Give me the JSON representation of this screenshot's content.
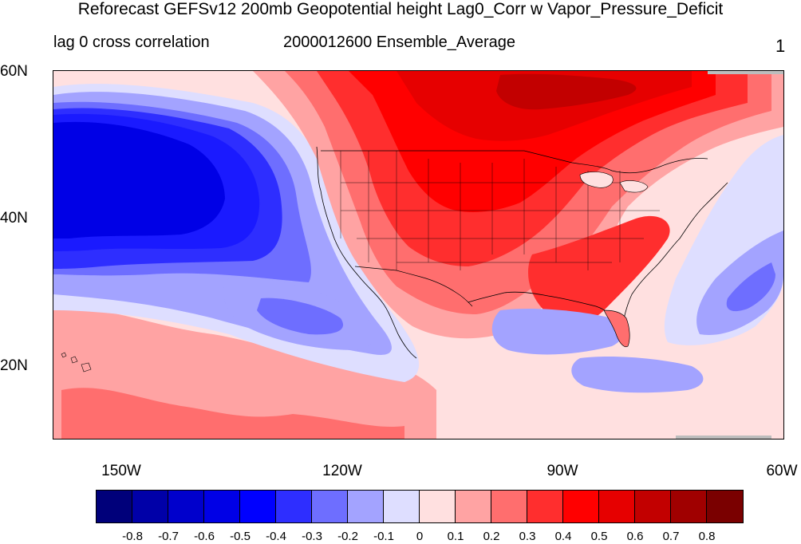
{
  "title": "Reforecast GEFSv12 200mb Geopotential height Lag0_Corr w Vapor_Pressure_Deficit",
  "subtitle_left": "lag 0 cross correlation",
  "subtitle_center": "2000012600 Ensemble_Average",
  "subtitle_right": "1",
  "map": {
    "extent": {
      "lon_min": -160,
      "lon_max": -60,
      "lat_min": 10,
      "lat_max": 60
    },
    "y_ticks": [
      "60N",
      "40N",
      "20N"
    ],
    "x_ticks": [
      "150W",
      "120W",
      "90W",
      "60W"
    ],
    "field": "correlation",
    "regions": [
      {
        "name": "north-pacific-negative-center",
        "level": -0.5,
        "color": "#1a1aff"
      },
      {
        "name": "north-pacific-negative-ring",
        "level": -0.3,
        "color": "#6e6eff"
      },
      {
        "name": "north-pacific-negative-outer",
        "level": -0.2,
        "color": "#a3a3ff"
      },
      {
        "name": "canada-positive",
        "level": 0.5,
        "color": "#ff0000"
      },
      {
        "name": "hudson-bay-max",
        "level": 0.7,
        "color": "#c20000"
      },
      {
        "name": "western-us-positive",
        "level": 0.4,
        "color": "#ff2e2e"
      },
      {
        "name": "atlantic-negative",
        "level": -0.2,
        "color": "#a3a3ff"
      },
      {
        "name": "gulf-negative",
        "level": -0.2,
        "color": "#a3a3ff"
      },
      {
        "name": "subtropical-pacific-positive",
        "level": 0.1,
        "color": "#ffa3a3"
      }
    ]
  },
  "colorbar": {
    "colors": [
      "#00007a",
      "#0000a8",
      "#0000cc",
      "#0000e6",
      "#0000ff",
      "#2e2eff",
      "#6e6eff",
      "#a3a3ff",
      "#dedeff",
      "#ffe0e0",
      "#ffa3a3",
      "#ff6e6e",
      "#ff2e2e",
      "#ff0000",
      "#e60000",
      "#c20000",
      "#a00000",
      "#7a0000"
    ],
    "labels": [
      "-0.8",
      "-0.7",
      "-0.6",
      "-0.5",
      "-0.4",
      "-0.3",
      "-0.2",
      "-0.1",
      "0",
      "0.1",
      "0.2",
      "0.3",
      "0.4",
      "0.5",
      "0.6",
      "0.7",
      "0.8"
    ]
  }
}
